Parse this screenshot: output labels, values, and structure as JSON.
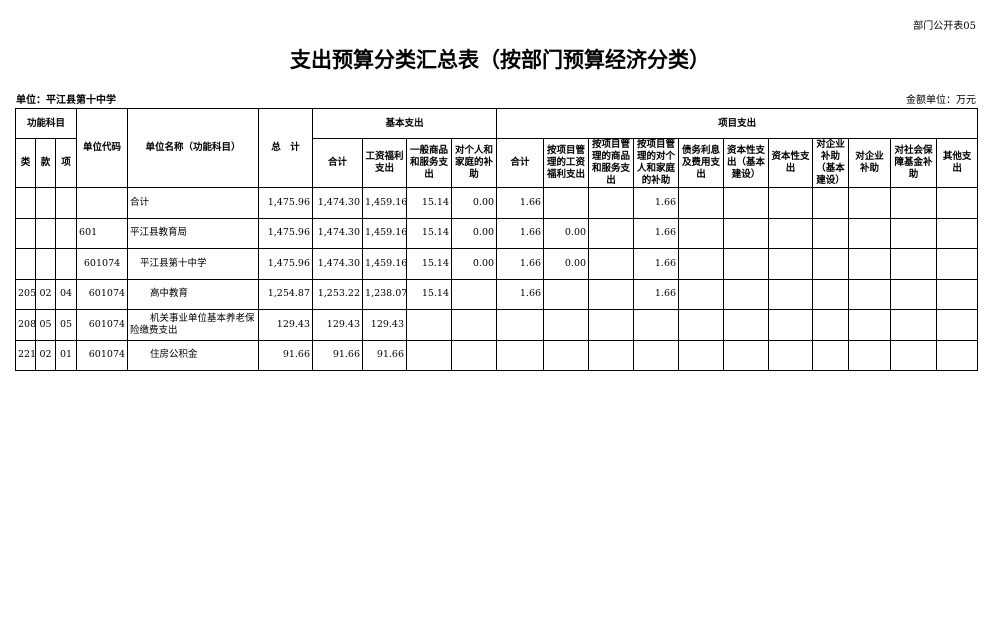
{
  "table_code": "部门公开表05",
  "title": "支出预算分类汇总表（按部门预算经济分类）",
  "unit": "单位：平江县第十中学",
  "amount_unit": "金额单位：万元",
  "headers": {
    "func": "功能科目",
    "lei": "类",
    "kuan": "款",
    "xiang": "项",
    "unit_code": "单位代码",
    "unit_name": "单位名称（功能科目）",
    "total": "总　计",
    "basic": "基本支出",
    "project": "项目支出",
    "basic_cols": [
      "合计",
      "工资福利支出",
      "一般商品和服务支出",
      "对个人和家庭的补助"
    ],
    "project_cols": [
      "合计",
      "按项目管理的工资福利支出",
      "按项目管理的商品和服务支出",
      "按项目管理的对个人和家庭的补助",
      "债务利息及费用支出",
      "资本性支出（基本建设）",
      "资本性支出",
      "对企业补助（基本建设）",
      "对企业补助",
      "对社会保障基金补助",
      "其他支出"
    ]
  },
  "rows": [
    {
      "lei": "",
      "kuan": "",
      "xiang": "",
      "code": "",
      "name": "合计",
      "total": "1,475.96",
      "b": [
        "1,474.30",
        "1,459.16",
        "15.14",
        "0.00"
      ],
      "p": [
        "1.66",
        "",
        "",
        "1.66",
        "",
        "",
        "",
        "",
        "",
        "",
        ""
      ]
    },
    {
      "lei": "",
      "kuan": "",
      "xiang": "",
      "code": "601",
      "name": "平江县教育局",
      "total": "1,475.96",
      "b": [
        "1,474.30",
        "1,459.16",
        "15.14",
        "0.00"
      ],
      "p": [
        "1.66",
        "0.00",
        "",
        "1.66",
        "",
        "",
        "",
        "",
        "",
        "",
        ""
      ]
    },
    {
      "lei": "",
      "kuan": "",
      "xiang": "",
      "code": "601074",
      "name": "平江县第十中学",
      "total": "1,475.96",
      "b": [
        "1,474.30",
        "1,459.16",
        "15.14",
        "0.00"
      ],
      "p": [
        "1.66",
        "0.00",
        "",
        "1.66",
        "",
        "",
        "",
        "",
        "",
        "",
        ""
      ]
    },
    {
      "lei": "205",
      "kuan": "02",
      "xiang": "04",
      "code": "601074",
      "name": "高中教育",
      "total": "1,254.87",
      "b": [
        "1,253.22",
        "1,238.07",
        "15.14",
        ""
      ],
      "p": [
        "1.66",
        "",
        "",
        "1.66",
        "",
        "",
        "",
        "",
        "",
        "",
        ""
      ]
    },
    {
      "lei": "208",
      "kuan": "05",
      "xiang": "05",
      "code": "601074",
      "name": "机关事业单位基本养老保险缴费支出",
      "total": "129.43",
      "b": [
        "129.43",
        "129.43",
        "",
        ""
      ],
      "p": [
        "",
        "",
        "",
        "",
        "",
        "",
        "",
        "",
        "",
        "",
        ""
      ]
    },
    {
      "lei": "221",
      "kuan": "02",
      "xiang": "01",
      "code": "601074",
      "name": "住房公积金",
      "total": "91.66",
      "b": [
        "91.66",
        "91.66",
        "",
        ""
      ],
      "p": [
        "",
        "",
        "",
        "",
        "",
        "",
        "",
        "",
        "",
        "",
        ""
      ]
    }
  ]
}
